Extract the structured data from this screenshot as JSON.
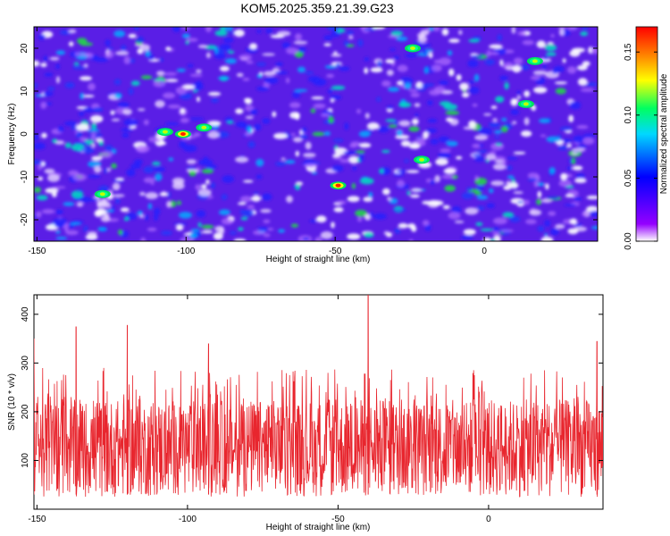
{
  "title": "KOM5.2025.359.21.39.G23",
  "chart_data": [
    {
      "type": "heatmap",
      "title": "KOM5.2025.359.21.39.G23",
      "xlabel": "Height of straight line (km)",
      "ylabel": "Frequency (Hz)",
      "xlim": [
        -151,
        38
      ],
      "ylim": [
        -25,
        25
      ],
      "x_ticks": [
        -150,
        -100,
        -50,
        0
      ],
      "y_ticks": [
        20,
        10,
        0,
        -10,
        -20
      ],
      "colorbar": {
        "label": "Normalized spectral amplitude",
        "range": [
          0,
          0.17
        ],
        "ticks": [
          "0.00",
          "0.05",
          "0.10",
          "0.15"
        ],
        "colors": [
          "#ffffff",
          "#9400ff",
          "#0000ff",
          "#00d8ff",
          "#00ff60",
          "#ffff00",
          "#ff8000",
          "#ff0000"
        ]
      },
      "peaks": [
        {
          "x": -101,
          "y": 0,
          "value": 0.17
        },
        {
          "x": -49,
          "y": -12,
          "value": 0.16
        },
        {
          "x": -128,
          "y": -14,
          "value": 0.09
        },
        {
          "x": -107,
          "y": 0.5,
          "value": 0.07
        },
        {
          "x": -94,
          "y": 1.5,
          "value": 0.07
        },
        {
          "x": -24,
          "y": 20,
          "value": 0.08
        },
        {
          "x": -21,
          "y": -6,
          "value": 0.07
        },
        {
          "x": 14,
          "y": 7,
          "value": 0.08
        },
        {
          "x": 17,
          "y": 17,
          "value": 0.06
        }
      ]
    },
    {
      "type": "line",
      "xlabel": "Height of straight line (km)",
      "ylabel": "SNR (10 * v/v)",
      "xlim": [
        -151,
        38
      ],
      "ylim": [
        0,
        440
      ],
      "x_ticks": [
        -150,
        -100,
        -50,
        0
      ],
      "y_ticks": [
        100,
        200,
        300,
        400
      ],
      "series": [
        {
          "name": "SNR",
          "color": "#e8262e",
          "baseline": 120,
          "typical_range": [
            20,
            290
          ],
          "peaks": [
            {
              "x": -151,
              "y": 350
            },
            {
              "x": -137,
              "y": 375
            },
            {
              "x": -120,
              "y": 378
            },
            {
              "x": -93,
              "y": 340
            },
            {
              "x": -40,
              "y": 440
            },
            {
              "x": 36,
              "y": 345
            }
          ]
        }
      ]
    }
  ]
}
